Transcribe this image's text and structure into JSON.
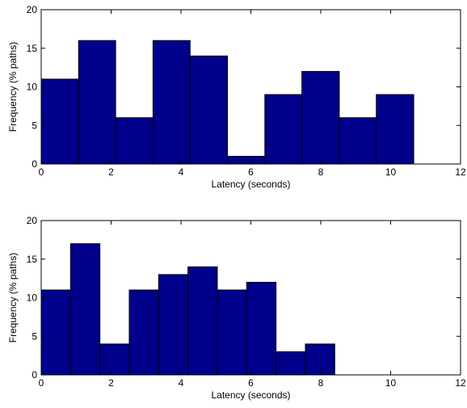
{
  "chart_data": [
    {
      "type": "histogram",
      "xlabel": "Latency (seconds)",
      "ylabel": "Frequency (% paths)",
      "bins": [
        0,
        1.07,
        2.13,
        3.2,
        4.26,
        5.33,
        6.4,
        7.46,
        8.53,
        9.59,
        10.66
      ],
      "values": [
        11,
        16,
        6,
        16,
        14,
        1,
        9,
        12,
        6,
        9
      ],
      "color": "#00008b",
      "xlim": [
        0,
        12
      ],
      "xticks": [
        0,
        2,
        4,
        6,
        8,
        10,
        12
      ],
      "ylim": [
        0,
        20
      ],
      "yticks": [
        0,
        5,
        10,
        15,
        20
      ]
    },
    {
      "type": "histogram",
      "xlabel": "Latency (seconds)",
      "ylabel": "Frequency (% paths)",
      "bins": [
        0,
        0.84,
        1.68,
        2.52,
        3.36,
        4.2,
        5.04,
        5.88,
        6.72,
        7.56,
        8.4
      ],
      "values": [
        11,
        17,
        4,
        11,
        13,
        14,
        11,
        12,
        3,
        4
      ],
      "color": "#00008b",
      "xlim": [
        0,
        12
      ],
      "xticks": [
        0,
        2,
        4,
        6,
        8,
        10,
        12
      ],
      "ylim": [
        0,
        20
      ],
      "yticks": [
        0,
        5,
        10,
        15,
        20
      ]
    }
  ]
}
